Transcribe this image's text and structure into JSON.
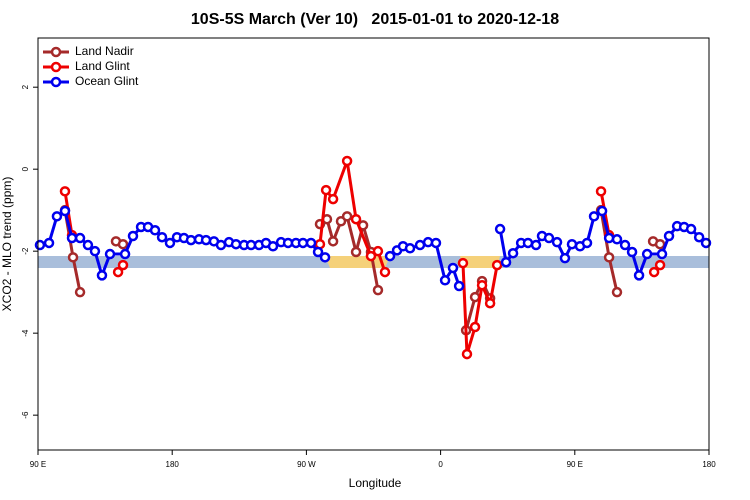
{
  "chart_data": {
    "type": "line",
    "title": "10S-5S March (Ver 10)   2015-01-01 to 2020-12-18",
    "xlabel": "Longitude",
    "ylabel": "XCO2 - MLO trend (ppm)",
    "xlim": [
      90,
      540
    ],
    "ylim": [
      -6.85,
      3.2
    ],
    "xticks": [
      {
        "value": 90,
        "label": "90 E"
      },
      {
        "value": 180,
        "label": "180"
      },
      {
        "value": 270,
        "label": "90 W"
      },
      {
        "value": 360,
        "label": "0"
      },
      {
        "value": 450,
        "label": "90 E"
      },
      {
        "value": 540,
        "label": "180"
      }
    ],
    "yticks": [
      -6,
      -4,
      -2,
      0,
      2
    ],
    "legend": "top-left",
    "series": [
      {
        "name": "Land Nadir",
        "color": "#a52a2a",
        "x": [
          108.1,
          113.5,
          118.2,
          null,
          142.3,
          147.0,
          null,
          279.1,
          283.8,
          287.9,
          293.2,
          297.3,
          303.3,
          308.0,
          313.3,
          318.0,
          null,
          377.1,
          383.1,
          387.8,
          393.2,
          null,
          467.6,
          473.0,
          478.3,
          null,
          502.5,
          507.2
        ],
        "values": [
          -1.0,
          -2.15,
          -3.0,
          null,
          -1.76,
          -1.83,
          null,
          -1.34,
          -1.22,
          -1.76,
          -1.27,
          -1.15,
          -2.02,
          -1.37,
          -2.02,
          -2.95,
          null,
          -3.93,
          -3.12,
          -2.73,
          -3.15,
          null,
          -1.0,
          -2.15,
          -3.0,
          null,
          -1.76,
          -1.83
        ]
      },
      {
        "name": "Land Glint",
        "color": "#ee0000",
        "x": [
          108.1,
          112.8,
          null,
          143.7,
          147.0,
          null,
          279.1,
          283.2,
          287.9,
          297.3,
          303.3,
          313.3,
          318.0,
          322.7,
          null,
          375.0,
          377.7,
          383.1,
          387.8,
          393.2,
          397.9,
          null,
          467.6,
          473.0,
          null,
          503.2,
          507.2
        ],
        "values": [
          -0.54,
          -1.61,
          null,
          -2.51,
          -2.34,
          null,
          -1.83,
          -0.51,
          -0.73,
          0.2,
          -1.22,
          -2.12,
          -2.0,
          -2.51,
          null,
          -2.29,
          -4.51,
          -3.85,
          -2.83,
          -3.27,
          -2.34,
          null,
          -0.54,
          -1.61,
          null,
          -2.51,
          -2.34
        ]
      },
      {
        "name": "Ocean Glint",
        "color": "#0000ee",
        "x": [
          91.3,
          97.4,
          102.7,
          108.1,
          112.8,
          118.2,
          123.5,
          128.2,
          132.9,
          138.3,
          148.4,
          153.7,
          159.1,
          163.8,
          168.5,
          173.2,
          178.5,
          183.2,
          187.9,
          192.6,
          198.0,
          202.7,
          208.0,
          212.7,
          218.1,
          222.8,
          228.2,
          232.9,
          238.2,
          242.9,
          247.6,
          253.0,
          257.7,
          263.0,
          267.7,
          273.1,
          277.8,
          282.5,
          null,
          326.1,
          330.8,
          334.8,
          339.5,
          346.2,
          351.6,
          356.9,
          363.0,
          368.3,
          372.4,
          null,
          399.9,
          403.9,
          408.6,
          414.0,
          418.6,
          424.0,
          428.0,
          432.7,
          438.1,
          443.4,
          448.1,
          453.5,
          458.2,
          462.9,
          468.3,
          473.0,
          478.3,
          483.7,
          488.4,
          493.1,
          498.5,
          508.5,
          513.2,
          518.6,
          523.3,
          528.0,
          533.4,
          538.0
        ],
        "values": [
          -1.85,
          -1.8,
          -1.15,
          -1.02,
          -1.68,
          -1.68,
          -1.85,
          -2.0,
          -2.59,
          -2.07,
          -2.07,
          -1.63,
          -1.41,
          -1.41,
          -1.49,
          -1.66,
          -1.8,
          -1.66,
          -1.68,
          -1.73,
          -1.71,
          -1.73,
          -1.76,
          -1.85,
          -1.78,
          -1.83,
          -1.85,
          -1.85,
          -1.85,
          -1.8,
          -1.88,
          -1.78,
          -1.8,
          -1.8,
          -1.8,
          -1.8,
          -2.02,
          -2.15,
          null,
          -2.12,
          -1.98,
          -1.88,
          -1.93,
          -1.85,
          -1.78,
          -1.8,
          -2.71,
          -2.41,
          -2.85,
          null,
          -1.46,
          -2.27,
          -2.05,
          -1.8,
          -1.8,
          -1.85,
          -1.63,
          -1.68,
          -1.78,
          -2.17,
          -1.83,
          -1.88,
          -1.8,
          -1.15,
          -1.02,
          -1.68,
          -1.71,
          -1.85,
          -2.02,
          -2.59,
          -2.07,
          -2.07,
          -1.63,
          -1.39,
          -1.41,
          -1.46,
          -1.66,
          -1.8
        ]
      }
    ]
  }
}
